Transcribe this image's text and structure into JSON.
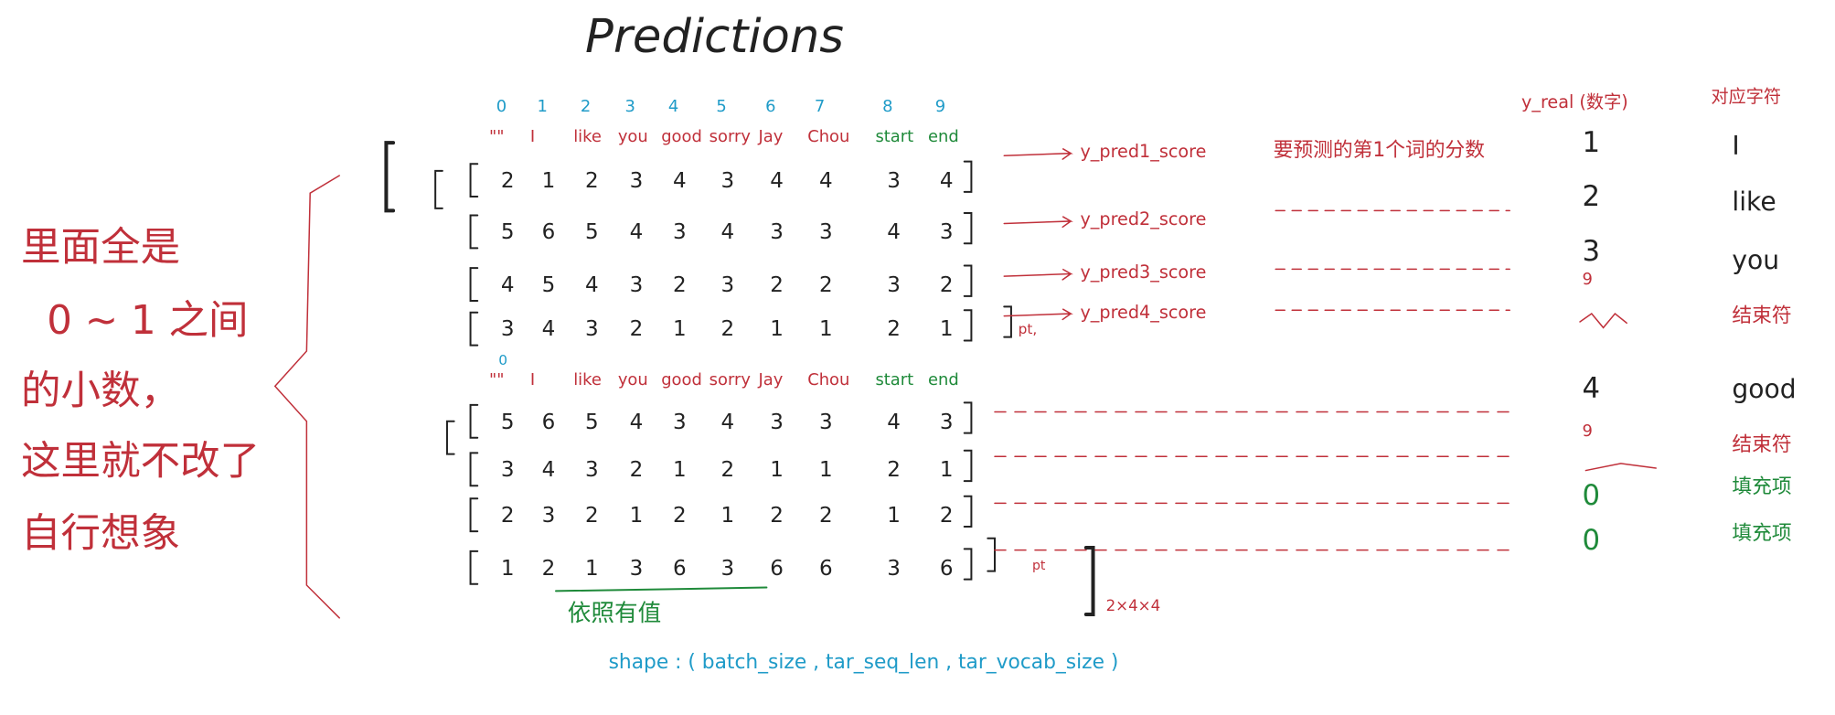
{
  "title": "Predictions",
  "indices": [
    0,
    1,
    2,
    3,
    4,
    5,
    6,
    7,
    8,
    9
  ],
  "batch_1": {
    "vocab": [
      "\"\"",
      "I",
      "like",
      "you",
      "good",
      "sorry",
      "Jay",
      "Chou",
      "start",
      "end"
    ],
    "rows": [
      [
        2,
        1,
        2,
        3,
        4,
        3,
        4,
        4,
        3,
        4
      ],
      [
        5,
        6,
        5,
        4,
        3,
        4,
        3,
        3,
        4,
        3
      ],
      [
        4,
        5,
        4,
        3,
        2,
        3,
        2,
        2,
        3,
        2
      ],
      [
        3,
        4,
        3,
        2,
        1,
        2,
        1,
        1,
        2,
        1
      ]
    ],
    "end_label": "pt,"
  },
  "batch_2": {
    "index": 0,
    "vocab": [
      "\"\"",
      "I",
      "like",
      "you",
      "good",
      "sorry",
      "Jay",
      "Chou",
      "start",
      "end"
    ],
    "rows": [
      [
        5,
        6,
        5,
        4,
        3,
        4,
        3,
        3,
        4,
        3
      ],
      [
        3,
        4,
        3,
        2,
        1,
        2,
        1,
        1,
        2,
        1
      ],
      [
        2,
        3,
        2,
        1,
        2,
        1,
        2,
        2,
        1,
        2
      ],
      [
        1,
        2,
        1,
        3,
        6,
        3,
        6,
        6,
        3,
        6
      ]
    ],
    "end_label": "pt"
  },
  "scores": [
    "y_pred1_score",
    "y_pred2_score",
    "y_pred3_score",
    "y_pred4_score"
  ],
  "score_note": "要预测的第1个词的分数",
  "shape_size": "2×4×4",
  "y_real": {
    "header": "y_real (数字)",
    "values": [
      "1",
      "2",
      "3",
      "9",
      "4",
      "9",
      "0",
      "0"
    ]
  },
  "chars": {
    "header": "对应字符",
    "values": [
      "I",
      "like",
      "you",
      "结束符",
      "good",
      "结束符",
      "填充项",
      "填充项"
    ]
  },
  "left_note": [
    "里面全是",
    "0 ~ 1 之间",
    "的小数，",
    "这里就不改了",
    "自行想象"
  ],
  "underline_note": "依照有值",
  "shape": "shape : ( batch_size , tar_seq_len , tar_vocab_size )"
}
